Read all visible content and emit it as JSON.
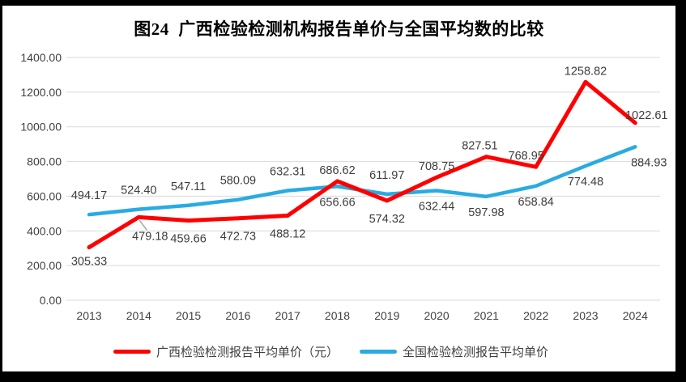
{
  "title": "图24  广西检验检测机构报告单价与全国平均数的比较",
  "chart_data": {
    "type": "line",
    "title": "图24  广西检验检测机构报告单价与全国平均数的比较",
    "categories": [
      "2013",
      "2014",
      "2015",
      "2016",
      "2017",
      "2018",
      "2019",
      "2020",
      "2021",
      "2022",
      "2023",
      "2024"
    ],
    "series": [
      {
        "name": "广西检验检测报告平均单价（元）",
        "color": "#FF0000",
        "values": [
          305.33,
          479.18,
          459.66,
          472.73,
          488.12,
          686.62,
          574.32,
          708.75,
          827.51,
          768.95,
          1258.82,
          1022.61
        ]
      },
      {
        "name": "全国检验检测报告平均单价",
        "color": "#29ABE2",
        "values": [
          494.17,
          524.4,
          547.11,
          580.09,
          632.31,
          656.66,
          611.97,
          632.44,
          597.98,
          658.84,
          774.48,
          884.93
        ]
      }
    ],
    "xlabel": "",
    "ylabel": "",
    "ylim": [
      0,
      1400
    ],
    "y_ticks": [
      1400,
      1200,
      1000,
      800,
      600,
      400,
      200,
      0
    ],
    "y_tick_format": "2dp",
    "data_label_format": "2dp",
    "grid": true,
    "gridline_color": "#D9D9D9",
    "axis_text_color": "#404040",
    "data_label_color": "#3D3D3D",
    "leader_line_color": "#A6A6A6",
    "legend_position": "bottom"
  }
}
